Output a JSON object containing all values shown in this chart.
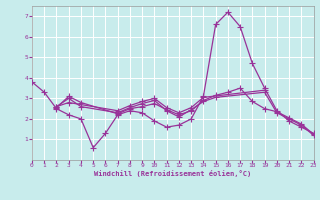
{
  "xlabel": "Windchill (Refroidissement éolien,°C)",
  "background_color": "#c8ecec",
  "grid_color": "#ffffff",
  "line_color": "#993399",
  "xlim": [
    0,
    23
  ],
  "ylim": [
    0.0,
    7.5
  ],
  "xticks": [
    0,
    1,
    2,
    3,
    4,
    5,
    6,
    7,
    8,
    9,
    10,
    11,
    12,
    13,
    14,
    15,
    16,
    17,
    18,
    19,
    20,
    21,
    22,
    23
  ],
  "yticks": [
    1,
    2,
    3,
    4,
    5,
    6,
    7
  ],
  "series": [
    {
      "x": [
        0,
        1,
        2,
        3,
        4,
        5,
        6,
        7,
        8,
        9,
        10,
        11,
        12,
        13,
        14,
        15,
        16,
        17,
        18,
        19,
        20,
        21,
        22,
        23
      ],
      "y": [
        3.8,
        3.3,
        2.5,
        2.2,
        2.0,
        0.6,
        1.3,
        2.2,
        2.4,
        2.3,
        1.9,
        1.6,
        1.7,
        2.0,
        3.1,
        6.6,
        7.2,
        6.5,
        4.7,
        3.5,
        2.4,
        1.9,
        1.6,
        1.3
      ]
    },
    {
      "x": [
        2,
        3,
        7,
        8,
        9,
        10,
        11,
        12,
        13,
        14,
        19
      ],
      "y": [
        2.6,
        2.8,
        2.4,
        2.65,
        2.85,
        3.0,
        2.55,
        2.3,
        2.55,
        3.05,
        3.4
      ]
    },
    {
      "x": [
        2,
        3,
        4,
        7,
        8,
        9,
        10,
        11,
        12,
        13,
        14,
        15,
        16,
        17,
        18,
        19,
        20,
        21,
        22,
        23
      ],
      "y": [
        2.55,
        3.1,
        2.8,
        2.25,
        2.5,
        2.6,
        2.75,
        2.45,
        2.2,
        2.4,
        2.9,
        3.15,
        3.3,
        3.5,
        2.85,
        2.5,
        2.35,
        2.05,
        1.75,
        1.25
      ]
    },
    {
      "x": [
        2,
        3,
        4,
        7,
        8,
        9,
        10,
        11,
        12,
        13,
        14,
        15,
        19,
        20,
        21,
        22,
        23
      ],
      "y": [
        2.6,
        3.0,
        2.6,
        2.3,
        2.55,
        2.75,
        2.9,
        2.4,
        2.1,
        2.45,
        2.85,
        3.05,
        3.3,
        2.3,
        2.0,
        1.7,
        1.2
      ]
    }
  ]
}
